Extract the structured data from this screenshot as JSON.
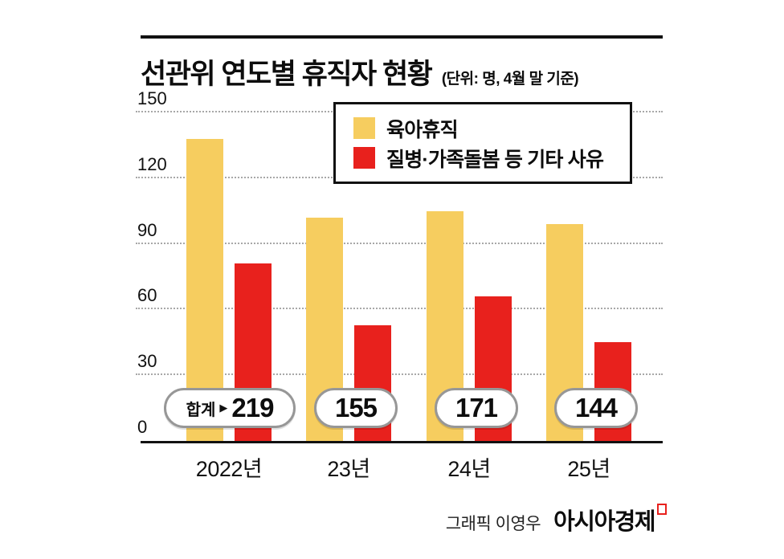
{
  "title": "선관위 연도별 휴직자 현황",
  "subtitle": "(단위: 명, 4월 말 기준)",
  "icons": {
    "total_arrow": "▶"
  },
  "chart_data": {
    "type": "bar",
    "title": "선관위 연도별 휴직자 현황",
    "unit_note": "단위: 명, 4월 말 기준",
    "categories": [
      "2022년",
      "23년",
      "24년",
      "25년"
    ],
    "series": [
      {
        "name": "육아휴직",
        "color": "#F6CD5F",
        "values": [
          138,
          102,
          105,
          99
        ]
      },
      {
        "name": "질병·가족돌봄 등 기타 사유",
        "color": "#E8211D",
        "values": [
          81,
          53,
          66,
          45
        ]
      }
    ],
    "totals": [
      219,
      155,
      171,
      144
    ],
    "total_label": "합계",
    "ylim": [
      0,
      150
    ],
    "yticks": [
      0,
      30,
      60,
      90,
      120,
      150
    ],
    "grid": "dotted-horizontal",
    "legend_position": "top-right"
  },
  "footer": {
    "credit": "그래픽 이영우",
    "brand": "아시아경제"
  }
}
